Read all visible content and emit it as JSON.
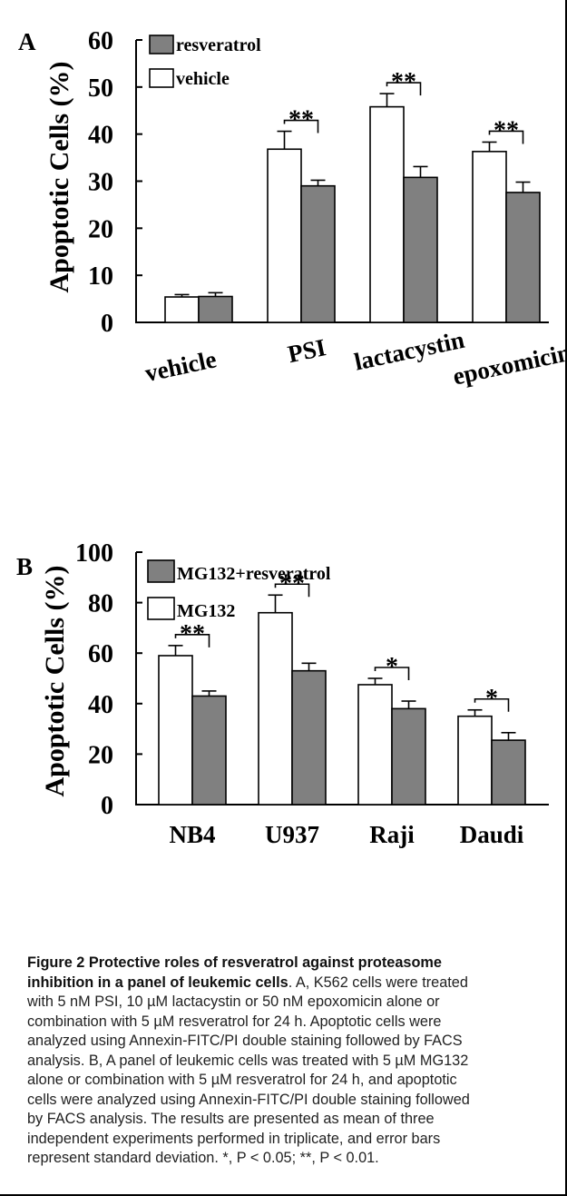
{
  "chart_data": [
    {
      "panel_label": "A",
      "type": "bar",
      "ylabel": "Apoptotic Cells (%)",
      "ylim": [
        0,
        60
      ],
      "yticks": [
        0,
        10,
        20,
        30,
        40,
        50,
        60
      ],
      "categories": [
        "vehicle",
        "PSI",
        "lactacystin",
        "epoxomicin"
      ],
      "series": [
        {
          "name": "vehicle",
          "color": "#ffffff",
          "values": [
            5.4,
            36.8,
            45.8,
            36.3
          ],
          "errors": [
            0.5,
            3.8,
            2.8,
            2.0
          ]
        },
        {
          "name": "resveratrol",
          "color": "#808080",
          "values": [
            5.5,
            29.0,
            30.8,
            27.6
          ],
          "errors": [
            0.8,
            1.2,
            2.3,
            2.2
          ]
        }
      ],
      "significance": [
        "",
        "**",
        "**",
        "**"
      ],
      "legend_position": "top-left"
    },
    {
      "panel_label": "B",
      "type": "bar",
      "ylabel": "Apoptotic Cells (%)",
      "ylim": [
        0,
        100
      ],
      "yticks": [
        0,
        20,
        40,
        60,
        80,
        100
      ],
      "categories": [
        "NB4",
        "U937",
        "Raji",
        "Daudi"
      ],
      "series": [
        {
          "name": "MG132",
          "color": "#ffffff",
          "values": [
            59,
            76,
            47.5,
            35
          ],
          "errors": [
            4,
            7,
            2.5,
            2.5
          ]
        },
        {
          "name": "MG132+resveratrol",
          "color": "#808080",
          "values": [
            43,
            53,
            38,
            25.5
          ],
          "errors": [
            2,
            3,
            3,
            3
          ]
        }
      ],
      "significance": [
        "**",
        "**",
        "*",
        "*"
      ],
      "legend_position": "top-left"
    }
  ],
  "caption": {
    "title": "Figure 2 Protective roles of resveratrol against proteasome inhibition in a panel of leukemic cells",
    "lines": [
      "Figure 2 Protective roles of resveratrol against proteasome",
      "inhibition in a panel of leukemic cells. A, K562 cells were treated",
      "with 5 nM PSI, 10 µM lactacystin or 50 nM epoxomicin alone or",
      "combination with 5 µM resveratrol for 24 h. Apoptotic cells were",
      "analyzed using Annexin-FITC/PI double staining followed by FACS",
      "analysis. B, A panel of leukemic cells was treated with 5 µM MG132",
      "alone or combination with 5 µM resveratrol for 24 h, and apoptotic",
      "cells were analyzed using Annexin-FITC/PI double staining followed",
      "by FACS analysis. The results are presented as mean of three",
      "independent experiments performed in triplicate, and error bars",
      "represent standard deviation. *, P < 0.05; **, P < 0.01."
    ]
  }
}
